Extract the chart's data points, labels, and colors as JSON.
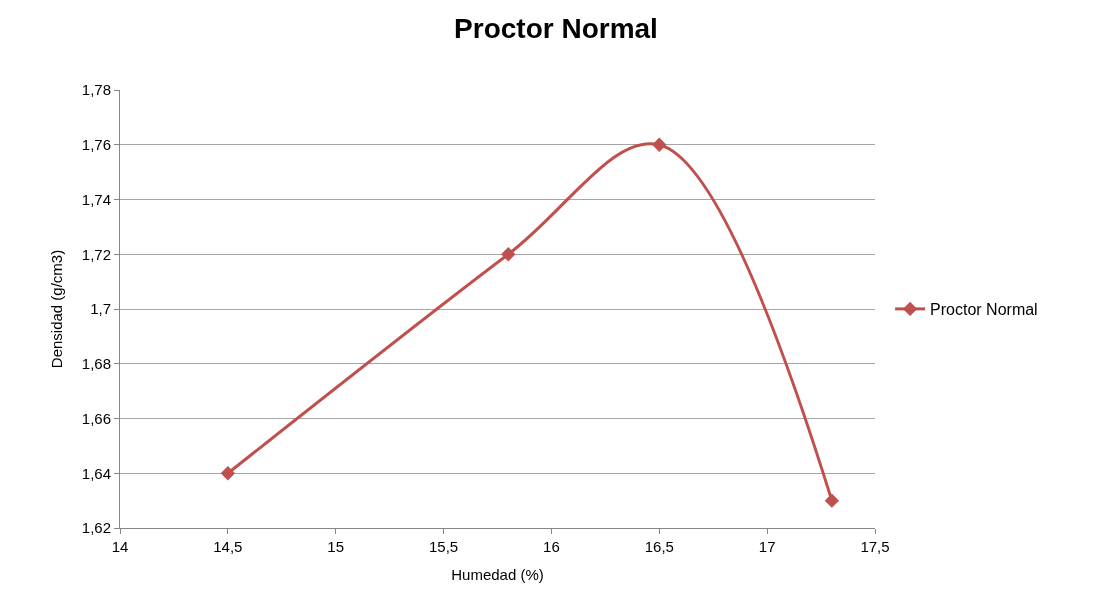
{
  "chart_data": {
    "type": "line",
    "title": "Proctor Normal",
    "xlabel": "Humedad (%)",
    "ylabel": "Densidad (g/cm3)",
    "x": [
      14.5,
      15.8,
      16.5,
      17.3
    ],
    "series": [
      {
        "name": "Proctor Normal",
        "color": "#c0504d",
        "values": [
          1.64,
          1.72,
          1.76,
          1.63
        ]
      }
    ],
    "xlim": [
      14,
      17.5
    ],
    "xticks": [
      14,
      {
        "value": 14.5,
        "label": "14,5"
      },
      15,
      {
        "value": 15.5,
        "label": "15,5"
      },
      16,
      {
        "value": 16.5,
        "label": "16,5"
      },
      17,
      {
        "value": 17.5,
        "label": "17,5"
      }
    ],
    "ylim": [
      1.62,
      1.78
    ],
    "yticks": [
      {
        "value": 1.62,
        "label": "1,62"
      },
      {
        "value": 1.64,
        "label": "1,64"
      },
      {
        "value": 1.66,
        "label": "1,66"
      },
      {
        "value": 1.68,
        "label": "1,68"
      },
      {
        "value": 1.7,
        "label": "1,7"
      },
      {
        "value": 1.72,
        "label": "1,72"
      },
      {
        "value": 1.74,
        "label": "1,74"
      },
      {
        "value": 1.76,
        "label": "1,76"
      },
      {
        "value": 1.78,
        "label": "1,78"
      }
    ],
    "grid": "y",
    "legend": "right",
    "marker": "diamond",
    "line_style": "solid"
  }
}
